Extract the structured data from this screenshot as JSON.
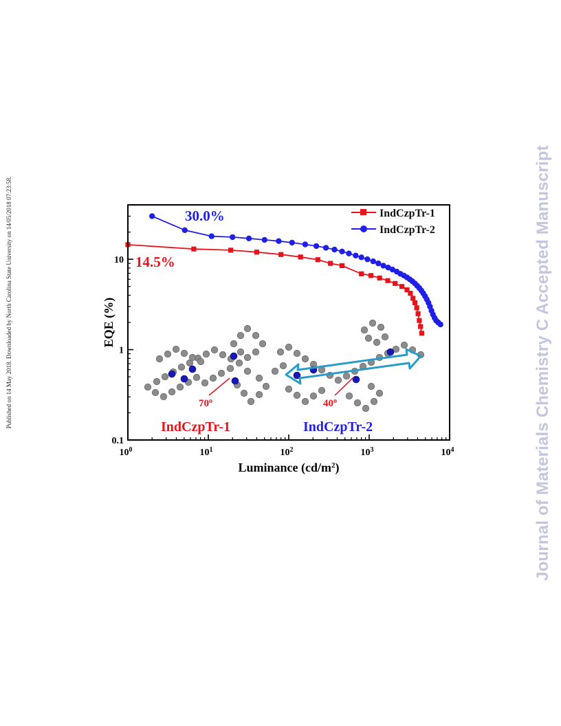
{
  "side_text_left": "Published on 14 May 2018. Downloaded by North Carolina State University on 14/05/2018 07:23:58.",
  "side_text_right": "Journal of Materials Chemistry C Accepted Manuscript",
  "chart_data": {
    "type": "line",
    "title": "",
    "xlabel": "Luminance (cd/m",
    "xlabel_sup": "2",
    "xlabel_end": ")",
    "ylabel": "EQE (%)",
    "x_scale": "log",
    "y_scale": "log",
    "xlim": [
      1,
      10000
    ],
    "ylim": [
      0.1,
      40
    ],
    "x_ticks": [
      {
        "base": "10",
        "exp": "0",
        "value": 1
      },
      {
        "base": "10",
        "exp": "1",
        "value": 10
      },
      {
        "base": "10",
        "exp": "2",
        "value": 100
      },
      {
        "base": "10",
        "exp": "3",
        "value": 1000
      },
      {
        "base": "10",
        "exp": "4",
        "value": 10000
      }
    ],
    "y_ticks": [
      {
        "label": "0.1",
        "value": 0.1
      },
      {
        "label": "1",
        "value": 1
      },
      {
        "label": "10",
        "value": 10
      }
    ],
    "grid": false,
    "legend_position": "top-right",
    "series": [
      {
        "name": "IndCzpTr-1",
        "color": "#e8141c",
        "marker": "square",
        "x": [
          1,
          6.6,
          19,
          40,
          80,
          140,
          230,
          330,
          460,
          800,
          1050,
          1350,
          1700,
          2100,
          2550,
          2950,
          3250,
          3500,
          3700,
          3900,
          4050,
          4200,
          4350,
          4500
        ],
        "y": [
          14.5,
          13.0,
          12.6,
          12.0,
          11.3,
          10.6,
          9.9,
          9.0,
          8.5,
          6.9,
          6.6,
          6.2,
          5.8,
          5.4,
          5.0,
          4.6,
          4.2,
          3.7,
          3.3,
          2.9,
          2.5,
          2.1,
          1.8,
          1.52
        ]
      },
      {
        "name": "IndCzpTr-2",
        "color": "#1f1fe6",
        "marker": "circle",
        "x": [
          2,
          5.1,
          11,
          20,
          32,
          50,
          75,
          110,
          160,
          220,
          290,
          370,
          460,
          560,
          680,
          800,
          950,
          1120,
          1300,
          1500,
          1720,
          1950,
          2200,
          2450,
          2700,
          2950,
          3200,
          3450,
          3700,
          3950,
          4200,
          4450,
          4700,
          4950,
          5200,
          5450,
          5700,
          5950,
          6200,
          6500,
          6800,
          7200,
          7700
        ],
        "y": [
          30.0,
          21.0,
          18.0,
          17.6,
          17.0,
          16.4,
          15.9,
          15.3,
          14.6,
          14.0,
          13.4,
          12.8,
          12.2,
          11.6,
          11.0,
          10.5,
          10.0,
          9.5,
          9.0,
          8.5,
          8.1,
          7.7,
          7.3,
          6.9,
          6.6,
          6.3,
          6.0,
          5.7,
          5.4,
          5.1,
          4.8,
          4.5,
          4.2,
          3.9,
          3.6,
          3.3,
          3.0,
          2.7,
          2.45,
          2.25,
          2.1,
          2.0,
          1.9
        ]
      }
    ],
    "annotations": {
      "max1": {
        "text": "14.5%",
        "color": "#e8141c"
      },
      "max2": {
        "text": "30.0%",
        "color": "#1f1fe6"
      },
      "mol1": {
        "text": "IndCzpTr-1",
        "color": "#e8141c"
      },
      "mol2": {
        "text": "IndCzpTr-2",
        "color": "#1f1fe6"
      },
      "angle1": {
        "text": "70",
        "sup": "o",
        "color": "#e8141c"
      },
      "angle2": {
        "text": "40",
        "sup": "o",
        "color": "#e8141c"
      },
      "arrow_color": "#2a9cc8"
    }
  }
}
